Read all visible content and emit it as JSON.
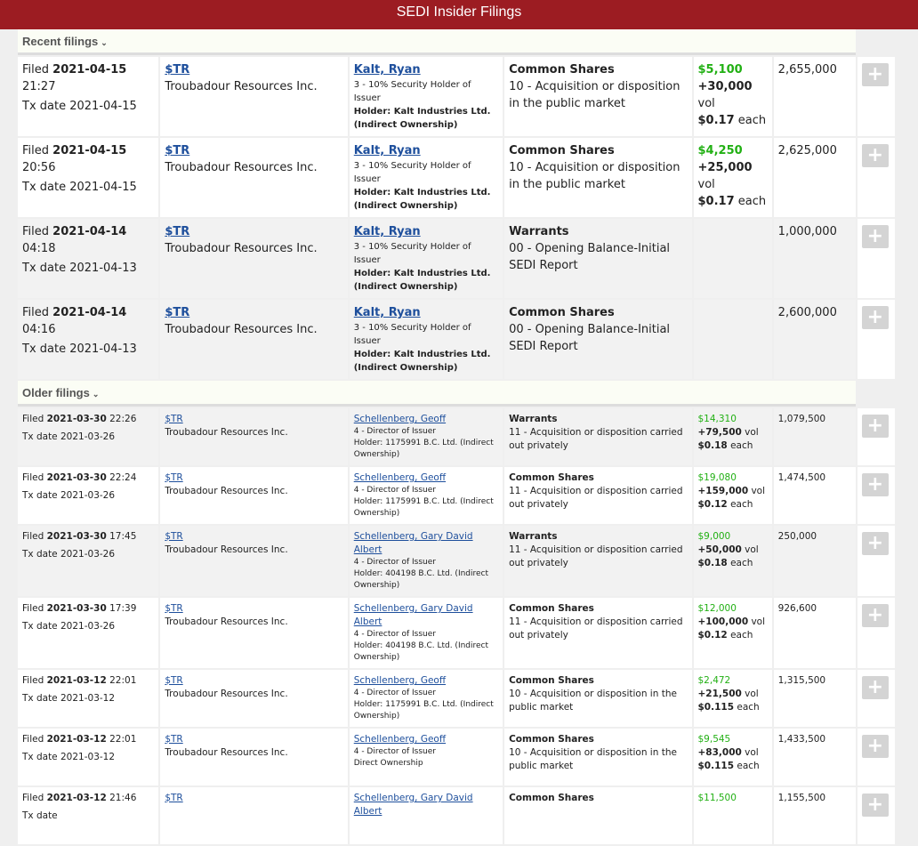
{
  "header": {
    "title": "SEDI Insider Filings"
  },
  "sections": [
    {
      "title": "Recent filings",
      "chevron": "chevron-down-icon",
      "rows": [
        {
          "filed_label": "Filed",
          "filed_date": "2021-04-15",
          "filed_time": "21:27",
          "tx_label": "Tx date",
          "tx_date": "2021-04-15",
          "ticker": "$TR",
          "company": "Troubadour Resources Inc.",
          "insider": "Kalt, Ryan",
          "role": "3 - 10% Security Holder of Issuer",
          "holder": "Holder: Kalt Industries Ltd. (Indirect Ownership)",
          "security": "Common Shares",
          "nature": "10 - Acquisition or disposition in the public market",
          "value": "$5,100",
          "volume": "+30,000",
          "vol_label": "vol",
          "price": "$0.17",
          "each_label": "each",
          "holdings": "2,655,000",
          "alt": false
        },
        {
          "filed_label": "Filed",
          "filed_date": "2021-04-15",
          "filed_time": "20:56",
          "tx_label": "Tx date",
          "tx_date": "2021-04-15",
          "ticker": "$TR",
          "company": "Troubadour Resources Inc.",
          "insider": "Kalt, Ryan",
          "role": "3 - 10% Security Holder of Issuer",
          "holder": "Holder: Kalt Industries Ltd. (Indirect Ownership)",
          "security": "Common Shares",
          "nature": "10 - Acquisition or disposition in the public market",
          "value": "$4,250",
          "volume": "+25,000",
          "vol_label": "vol",
          "price": "$0.17",
          "each_label": "each",
          "holdings": "2,625,000",
          "alt": false
        },
        {
          "filed_label": "Filed",
          "filed_date": "2021-04-14",
          "filed_time": "04:18",
          "tx_label": "Tx date",
          "tx_date": "2021-04-13",
          "ticker": "$TR",
          "company": "Troubadour Resources Inc.",
          "insider": "Kalt, Ryan",
          "role": "3 - 10% Security Holder of Issuer",
          "holder": "Holder: Kalt Industries Ltd. (Indirect Ownership)",
          "security": "Warrants",
          "nature": "00 - Opening Balance-Initial SEDI Report",
          "value": "",
          "volume": "",
          "vol_label": "",
          "price": "",
          "each_label": "",
          "holdings": "1,000,000",
          "alt": true
        },
        {
          "filed_label": "Filed",
          "filed_date": "2021-04-14",
          "filed_time": "04:16",
          "tx_label": "Tx date",
          "tx_date": "2021-04-13",
          "ticker": "$TR",
          "company": "Troubadour Resources Inc.",
          "insider": "Kalt, Ryan",
          "role": "3 - 10% Security Holder of Issuer",
          "holder": "Holder: Kalt Industries Ltd. (Indirect Ownership)",
          "security": "Common Shares",
          "nature": "00 - Opening Balance-Initial SEDI Report",
          "value": "",
          "volume": "",
          "vol_label": "",
          "price": "",
          "each_label": "",
          "holdings": "2,600,000",
          "alt": true
        }
      ]
    },
    {
      "title": "Older filings",
      "chevron": "chevron-down-icon",
      "rows": [
        {
          "filed_label": "Filed",
          "filed_date": "2021-03-30",
          "filed_time": "22:26",
          "tx_label": "Tx date",
          "tx_date": "2021-03-26",
          "ticker": "$TR",
          "company": "Troubadour Resources Inc.",
          "insider": "Schellenberg, Geoff",
          "role": "4 - Director of Issuer",
          "holder": "Holder: 1175991 B.C. Ltd. (Indirect Ownership)",
          "security": "Warrants",
          "nature": "11 - Acquisition or disposition carried out privately",
          "value": "$14,310",
          "volume": "+79,500",
          "vol_label": "vol",
          "price": "$0.18",
          "each_label": "each",
          "holdings": "1,079,500",
          "alt": true
        },
        {
          "filed_label": "Filed",
          "filed_date": "2021-03-30",
          "filed_time": "22:24",
          "tx_label": "Tx date",
          "tx_date": "2021-03-26",
          "ticker": "$TR",
          "company": "Troubadour Resources Inc.",
          "insider": "Schellenberg, Geoff",
          "role": "4 - Director of Issuer",
          "holder": "Holder: 1175991 B.C. Ltd. (Indirect Ownership)",
          "security": "Common Shares",
          "nature": "11 - Acquisition or disposition carried out privately",
          "value": "$19,080",
          "volume": "+159,000",
          "vol_label": "vol",
          "price": "$0.12",
          "each_label": "each",
          "holdings": "1,474,500",
          "alt": false
        },
        {
          "filed_label": "Filed",
          "filed_date": "2021-03-30",
          "filed_time": "17:45",
          "tx_label": "Tx date",
          "tx_date": "2021-03-26",
          "ticker": "$TR",
          "company": "Troubadour Resources Inc.",
          "insider": "Schellenberg, Gary David Albert",
          "role": "4 - Director of Issuer",
          "holder": "Holder: 404198 B.C. Ltd. (Indirect Ownership)",
          "security": "Warrants",
          "nature": "11 - Acquisition or disposition carried out privately",
          "value": "$9,000",
          "volume": "+50,000",
          "vol_label": "vol",
          "price": "$0.18",
          "each_label": "each",
          "holdings": "250,000",
          "alt": true
        },
        {
          "filed_label": "Filed",
          "filed_date": "2021-03-30",
          "filed_time": "17:39",
          "tx_label": "Tx date",
          "tx_date": "2021-03-26",
          "ticker": "$TR",
          "company": "Troubadour Resources Inc.",
          "insider": "Schellenberg, Gary David Albert",
          "role": "4 - Director of Issuer",
          "holder": "Holder: 404198 B.C. Ltd. (Indirect Ownership)",
          "security": "Common Shares",
          "nature": "11 - Acquisition or disposition carried out privately",
          "value": "$12,000",
          "volume": "+100,000",
          "vol_label": "vol",
          "price": "$0.12",
          "each_label": "each",
          "holdings": "926,600",
          "alt": false
        },
        {
          "filed_label": "Filed",
          "filed_date": "2021-03-12",
          "filed_time": "22:01",
          "tx_label": "Tx date",
          "tx_date": "2021-03-12",
          "ticker": "$TR",
          "company": "Troubadour Resources Inc.",
          "insider": "Schellenberg, Geoff",
          "role": "4 - Director of Issuer",
          "holder": "Holder: 1175991 B.C. Ltd. (Indirect Ownership)",
          "security": "Common Shares",
          "nature": "10 - Acquisition or disposition in the public market",
          "value": "$2,472",
          "volume": "+21,500",
          "vol_label": "vol",
          "price": "$0.115",
          "each_label": "each",
          "holdings": "1,315,500",
          "alt": false
        },
        {
          "filed_label": "Filed",
          "filed_date": "2021-03-12",
          "filed_time": "22:01",
          "tx_label": "Tx date",
          "tx_date": "2021-03-12",
          "ticker": "$TR",
          "company": "Troubadour Resources Inc.",
          "insider": "Schellenberg, Geoff",
          "role": "4 - Director of Issuer",
          "holder": "Direct Ownership",
          "security": "Common Shares",
          "nature": "10 - Acquisition or disposition in the public market",
          "value": "$9,545",
          "volume": "+83,000",
          "vol_label": "vol",
          "price": "$0.115",
          "each_label": "each",
          "holdings": "1,433,500",
          "alt": false
        },
        {
          "filed_label": "Filed",
          "filed_date": "2021-03-12",
          "filed_time": "21:46",
          "tx_label": "Tx date",
          "tx_date": "",
          "ticker": "$TR",
          "company": "",
          "insider": "Schellenberg, Gary David Albert",
          "role": "",
          "holder": "",
          "security": "Common Shares",
          "nature": "",
          "value": "$11,500",
          "volume": "",
          "vol_label": "",
          "price": "",
          "each_label": "",
          "holdings": "1,155,500",
          "alt": false
        }
      ]
    }
  ],
  "colors": {
    "header_bg": "#9c1c22",
    "value_green": "#22b014",
    "link": "#1e4f9c"
  },
  "row_button_icon": "plus-icon"
}
